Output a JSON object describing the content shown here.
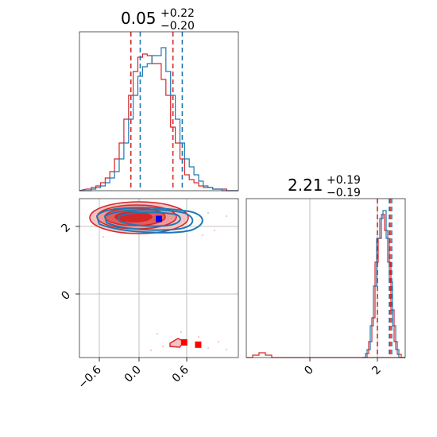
{
  "colors": {
    "red": "#d62728",
    "blue": "#1f77b4",
    "marker_blue": "#0000ff",
    "marker_red": "#ff0000"
  },
  "chart_data": [
    {
      "type": "histogram",
      "panel": "p1-marginal",
      "title": {
        "median": "0.05",
        "plus": "+0.22",
        "minus": "−0.20"
      },
      "xlim": [
        -0.7,
        1.0
      ],
      "quantile_lines": {
        "red": [
          -0.15,
          0.3
        ],
        "blue": [
          -0.05,
          0.4
        ]
      },
      "x": [
        -0.6,
        -0.55,
        -0.5,
        -0.45,
        -0.4,
        -0.35,
        -0.3,
        -0.25,
        -0.2,
        -0.15,
        -0.1,
        -0.05,
        0,
        0.05,
        0.1,
        0.15,
        0.2,
        0.25,
        0.3,
        0.35,
        0.4,
        0.45,
        0.5,
        0.55,
        0.6,
        0.65,
        0.7,
        0.75,
        0.8,
        0.85,
        0.9
      ],
      "series": [
        {
          "color": "red",
          "values": [
            1,
            2,
            3,
            5,
            8,
            12,
            20,
            30,
            45,
            60,
            75,
            84,
            86,
            85,
            80,
            80,
            70,
            60,
            40,
            30,
            20,
            10,
            7,
            5,
            3,
            2,
            2,
            1,
            1,
            1,
            0
          ]
        },
        {
          "color": "blue",
          "values": [
            0,
            1,
            2,
            3,
            5,
            8,
            12,
            20,
            30,
            45,
            60,
            72,
            78,
            80,
            85,
            85,
            90,
            75,
            60,
            45,
            30,
            20,
            15,
            10,
            6,
            3,
            2,
            1,
            1,
            0,
            0
          ]
        }
      ],
      "xticks": [],
      "yticks": []
    },
    {
      "type": "scatter-contour",
      "panel": "p1-vs-p2",
      "xlim": [
        -0.7,
        1.0
      ],
      "ylim": [
        -1.9,
        2.8
      ],
      "xticks": [
        "−0.6",
        "0.0",
        "0.6"
      ],
      "yticks": [
        "2",
        "0"
      ],
      "blue_marker": {
        "x": 0.15,
        "y": 2.2
      },
      "red_markers": [
        {
          "x": 0.42,
          "y": -1.45
        },
        {
          "x": 0.57,
          "y": -1.52
        }
      ]
    },
    {
      "type": "histogram",
      "panel": "p2-marginal",
      "title": {
        "median": "2.21",
        "plus": "+0.19",
        "minus": "−0.19"
      },
      "xlim": [
        -1.9,
        2.8
      ],
      "quantile_lines": {
        "red": [
          2.0,
          2.4
        ],
        "blue": [
          2.35,
          2.45
        ]
      },
      "xticks": [
        "0",
        "2"
      ],
      "yticks": []
    }
  ]
}
